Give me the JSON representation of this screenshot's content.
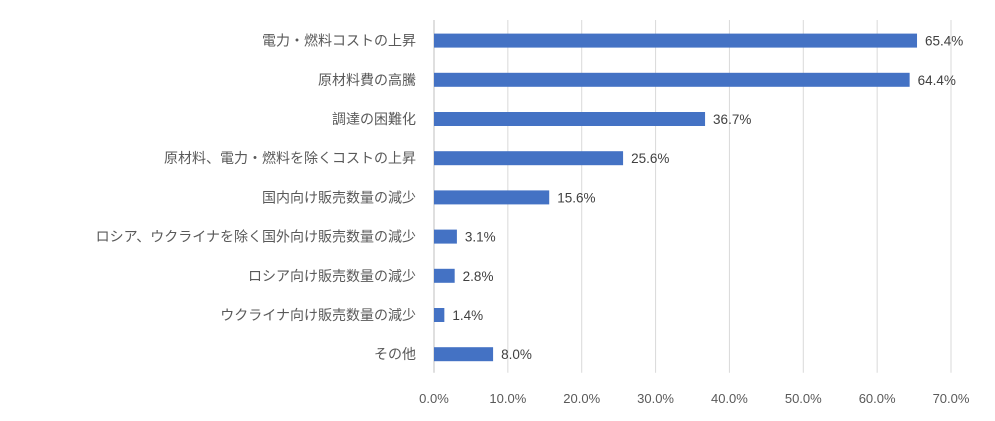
{
  "chart_data": {
    "type": "bar",
    "orientation": "horizontal",
    "categories": [
      "電力・燃料コストの上昇",
      "原材料費の高騰",
      "調達の困難化",
      "原材料、電力・燃料を除くコストの上昇",
      "国内向け販売数量の減少",
      "ロシア、ウクライナを除く国外向け販売数量の減少",
      "ロシア向け販売数量の減少",
      "ウクライナ向け販売数量の減少",
      "その他"
    ],
    "values": [
      65.4,
      64.4,
      36.7,
      25.6,
      15.6,
      3.1,
      2.8,
      1.4,
      8.0
    ],
    "data_labels": [
      "65.4%",
      "64.4%",
      "36.7%",
      "25.6%",
      "15.6%",
      "3.1%",
      "2.8%",
      "1.4%",
      "8.0%"
    ],
    "x_ticks": [
      "0.0%",
      "10.0%",
      "20.0%",
      "30.0%",
      "40.0%",
      "50.0%",
      "60.0%",
      "70.0%"
    ],
    "xlim": [
      0,
      70
    ],
    "grid": true,
    "bar_color": "#4472C4",
    "title": "",
    "xlabel": "",
    "ylabel": ""
  }
}
